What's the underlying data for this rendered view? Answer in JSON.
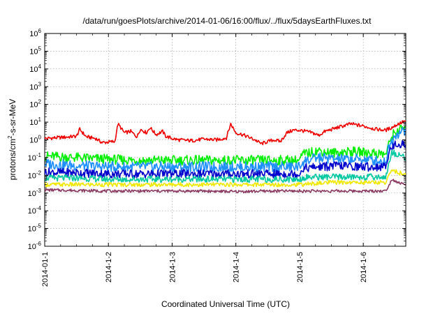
{
  "chart_data": {
    "type": "line",
    "title": "/data/run/goesPlots/archive/2014-01-06/16:00/flux/../flux/5daysEarthFluxes.txt",
    "xlabel": "Coordinated Universal Time (UTC)",
    "ylabel_parts": [
      "protons/cm",
      "2",
      "-s-sr-MeV"
    ],
    "x_axis": {
      "scale": "time",
      "range": [
        "2014-01-01",
        "2014-01-06T16:00"
      ],
      "ticks": [
        "2014-01-1",
        "2014-1-2",
        "2014-1-3",
        "2014-1-4",
        "2014-1-5",
        "2014-1-6"
      ]
    },
    "y_axis": {
      "scale": "log",
      "range": [
        1e-06,
        1000000.0
      ],
      "tick_base": "10",
      "tick_exponents": [
        "-6",
        "-5",
        "-4",
        "-3",
        "-2",
        "-1",
        "0",
        "1",
        "2",
        "3",
        "4",
        "5",
        "6"
      ]
    },
    "grid": true,
    "legend": "none",
    "series": [
      {
        "color": "#ee0000",
        "points": [
          [
            0,
            1.2
          ],
          [
            0.3,
            1.4
          ],
          [
            0.5,
            1.6
          ],
          [
            0.55,
            4
          ],
          [
            0.65,
            1.5
          ],
          [
            0.8,
            1.2
          ],
          [
            0.9,
            0.7
          ],
          [
            1.1,
            0.8
          ],
          [
            1.15,
            8
          ],
          [
            1.25,
            2.5
          ],
          [
            1.35,
            3
          ],
          [
            1.45,
            1.5
          ],
          [
            1.5,
            4
          ],
          [
            1.6,
            2.5
          ],
          [
            1.65,
            5
          ],
          [
            1.75,
            2
          ],
          [
            1.85,
            3
          ],
          [
            1.9,
            1.6
          ],
          [
            2.0,
            1.2
          ],
          [
            2.1,
            1.0
          ],
          [
            2.3,
            0.9
          ],
          [
            2.5,
            1.1
          ],
          [
            2.7,
            1.0
          ],
          [
            2.85,
            1.3
          ],
          [
            2.92,
            8
          ],
          [
            3.0,
            2.5
          ],
          [
            3.1,
            2
          ],
          [
            3.3,
            1.0
          ],
          [
            3.4,
            0.6
          ],
          [
            3.5,
            0.8
          ],
          [
            3.6,
            1.0
          ],
          [
            3.7,
            0.8
          ],
          [
            3.8,
            2.5
          ],
          [
            3.9,
            3.5
          ],
          [
            4.0,
            3.5
          ],
          [
            4.1,
            3.0
          ],
          [
            4.2,
            2.5
          ],
          [
            4.3,
            1.8
          ],
          [
            4.4,
            3
          ],
          [
            4.6,
            5
          ],
          [
            4.8,
            8
          ],
          [
            5.0,
            6
          ],
          [
            5.2,
            4
          ],
          [
            5.35,
            3.5
          ],
          [
            5.45,
            5
          ],
          [
            5.55,
            8
          ],
          [
            5.67,
            12
          ]
        ]
      },
      {
        "color": "#00ee00",
        "points": [
          [
            0,
            0.12
          ],
          [
            0.5,
            0.1
          ],
          [
            1.0,
            0.08
          ],
          [
            1.5,
            0.07
          ],
          [
            2.0,
            0.07
          ],
          [
            2.5,
            0.07
          ],
          [
            3.0,
            0.07
          ],
          [
            3.5,
            0.07
          ],
          [
            4.0,
            0.07
          ],
          [
            4.05,
            0.15
          ],
          [
            4.3,
            0.25
          ],
          [
            4.5,
            0.18
          ],
          [
            4.8,
            0.22
          ],
          [
            5.0,
            0.2
          ],
          [
            5.2,
            0.18
          ],
          [
            5.35,
            0.15
          ],
          [
            5.4,
            0.5
          ],
          [
            5.45,
            1.8
          ],
          [
            5.55,
            3.5
          ],
          [
            5.67,
            5
          ]
        ]
      },
      {
        "color": "#1e90ff",
        "points": [
          [
            0,
            0.045
          ],
          [
            0.5,
            0.035
          ],
          [
            1.0,
            0.03
          ],
          [
            1.5,
            0.03
          ],
          [
            2.0,
            0.03
          ],
          [
            2.5,
            0.03
          ],
          [
            3.0,
            0.03
          ],
          [
            3.5,
            0.03
          ],
          [
            4.0,
            0.03
          ],
          [
            4.05,
            0.06
          ],
          [
            4.3,
            0.1
          ],
          [
            4.6,
            0.08
          ],
          [
            5.0,
            0.08
          ],
          [
            5.35,
            0.06
          ],
          [
            5.4,
            0.4
          ],
          [
            5.5,
            2.0
          ],
          [
            5.67,
            3.5
          ]
        ]
      },
      {
        "color": "#0000cc",
        "points": [
          [
            0,
            0.015
          ],
          [
            0.5,
            0.014
          ],
          [
            1.0,
            0.012
          ],
          [
            1.5,
            0.012
          ],
          [
            2.0,
            0.012
          ],
          [
            2.5,
            0.012
          ],
          [
            3.0,
            0.012
          ],
          [
            3.5,
            0.012
          ],
          [
            4.0,
            0.012
          ],
          [
            4.05,
            0.025
          ],
          [
            4.3,
            0.03
          ],
          [
            4.6,
            0.035
          ],
          [
            5.0,
            0.03
          ],
          [
            5.35,
            0.03
          ],
          [
            5.4,
            0.2
          ],
          [
            5.5,
            0.6
          ],
          [
            5.67,
            0.55
          ]
        ]
      },
      {
        "color": "#00c8a0",
        "points": [
          [
            0,
            0.007
          ],
          [
            0.5,
            0.007
          ],
          [
            1.0,
            0.006
          ],
          [
            1.5,
            0.006
          ],
          [
            2.0,
            0.006
          ],
          [
            2.5,
            0.006
          ],
          [
            3.0,
            0.006
          ],
          [
            3.5,
            0.006
          ],
          [
            4.0,
            0.006
          ],
          [
            4.1,
            0.008
          ],
          [
            4.6,
            0.008
          ],
          [
            5.0,
            0.008
          ],
          [
            5.35,
            0.008
          ],
          [
            5.45,
            0.2
          ],
          [
            5.55,
            0.15
          ],
          [
            5.67,
            0.1
          ]
        ]
      },
      {
        "color": "#f0e800",
        "points": [
          [
            0,
            0.003
          ],
          [
            0.5,
            0.003
          ],
          [
            1.0,
            0.003
          ],
          [
            1.5,
            0.003
          ],
          [
            2.0,
            0.003
          ],
          [
            2.5,
            0.003
          ],
          [
            3.0,
            0.003
          ],
          [
            3.5,
            0.003
          ],
          [
            4.0,
            0.003
          ],
          [
            4.5,
            0.004
          ],
          [
            5.0,
            0.004
          ],
          [
            5.35,
            0.004
          ],
          [
            5.45,
            0.02
          ],
          [
            5.67,
            0.01
          ]
        ]
      },
      {
        "color": "#8b3a62",
        "points": [
          [
            0,
            0.0015
          ],
          [
            0.5,
            0.0014
          ],
          [
            1.0,
            0.0013
          ],
          [
            1.5,
            0.0013
          ],
          [
            2.0,
            0.0013
          ],
          [
            2.5,
            0.0013
          ],
          [
            3.0,
            0.0012
          ],
          [
            3.5,
            0.0013
          ],
          [
            4.0,
            0.0013
          ],
          [
            4.5,
            0.0013
          ],
          [
            5.0,
            0.0013
          ],
          [
            5.35,
            0.0013
          ],
          [
            5.45,
            0.006
          ],
          [
            5.55,
            0.004
          ],
          [
            5.67,
            0.0028
          ]
        ]
      }
    ]
  }
}
